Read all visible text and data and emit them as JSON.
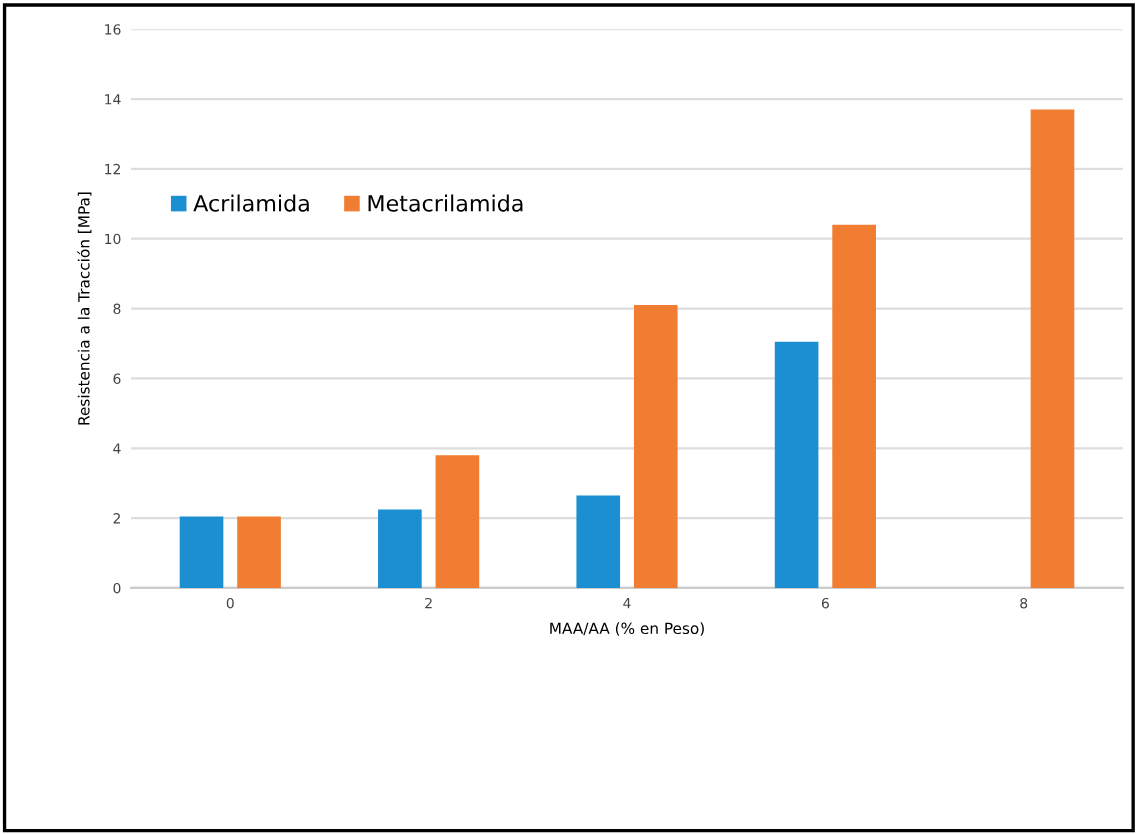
{
  "chart_data": {
    "type": "bar",
    "categories": [
      "0",
      "2",
      "4",
      "6",
      "8"
    ],
    "series": [
      {
        "name": "Acrilamida",
        "color": "#1b8fd1",
        "values": [
          2.05,
          2.25,
          2.65,
          7.05,
          null
        ]
      },
      {
        "name": "Metacrilamida",
        "color": "#f07d32",
        "values": [
          2.05,
          3.8,
          8.1,
          10.4,
          13.7
        ]
      }
    ],
    "xlabel": "MAA/AA (% en Peso)",
    "ylabel": "Resistencia a la Tracción [MPa]",
    "ylim": [
      0,
      16
    ],
    "yticks": [
      0,
      2,
      4,
      6,
      8,
      10,
      12,
      14,
      16
    ],
    "grid": "y",
    "legend": "top left"
  }
}
